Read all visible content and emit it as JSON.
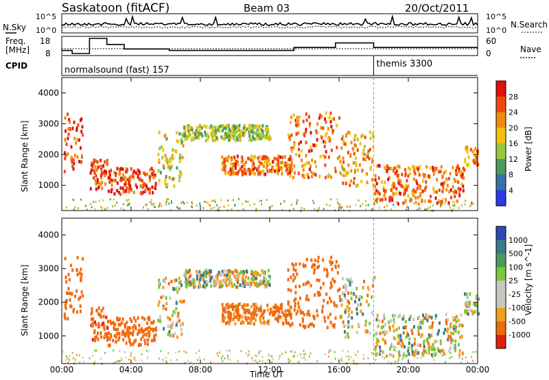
{
  "header": {
    "station": "Saskatoon (fitACF)",
    "beam": "Beam 03",
    "date": "20/Oct/2011"
  },
  "noise_panel": {
    "left_label": "N.Sky",
    "right_label": "N.Search",
    "left_ticks": [
      "10^5",
      "10^0"
    ],
    "right_ticks": [
      "10^5",
      "10^0"
    ]
  },
  "freq_panel": {
    "left_label_1": "Freq.",
    "left_label_2": "[MHz]",
    "right_label": "Nave",
    "left_ticks": [
      "18",
      "8"
    ],
    "right_ticks": [
      "60",
      "0"
    ]
  },
  "cpid": {
    "label": "CPID",
    "segments": [
      {
        "name": "normalsound (fast) 157",
        "start_hour": 0,
        "end_hour": 18
      },
      {
        "name": "themis 3300",
        "start_hour": 18,
        "end_hour": 24
      }
    ]
  },
  "power_panel": {
    "ylabel": "Slant Range [km]",
    "yticks": [
      "4000",
      "3000",
      "2000",
      "1000"
    ],
    "colorbar_label": "Power [dB]",
    "colorbar_ticks": [
      "28",
      "24",
      "20",
      "16",
      "12",
      "8",
      "4"
    ],
    "colors": [
      "#e01010",
      "#ee4a10",
      "#f08a10",
      "#f2c010",
      "#98c83a",
      "#4a9a5a",
      "#3a70a8",
      "#2a3ae8"
    ]
  },
  "velocity_panel": {
    "ylabel": "Slant Range [km]",
    "yticks": [
      "4000",
      "3000",
      "2000",
      "1000"
    ],
    "colorbar_label": "Velocity [m s^-1]",
    "colorbar_ticks": [
      "1000",
      "500",
      "100",
      "25",
      "-25",
      "-100",
      "-500",
      "-1000"
    ],
    "colors": [
      "#2a4ab0",
      "#3a7a8a",
      "#4a9a5a",
      "#7ac83a",
      "#c8c8c0",
      "#c8c8c0",
      "#f0a020",
      "#f06a10",
      "#e02010"
    ]
  },
  "xaxis": {
    "label": "Time UT",
    "ticks": [
      "00:00",
      "04:00",
      "08:00",
      "12:00",
      "16:00",
      "20:00",
      "00:00"
    ]
  },
  "chart_data": {
    "type": "heatmap",
    "title": "Saskatoon (fitACF)   Beam 03   20/Oct/2011",
    "xlabel": "Time UT",
    "ylabel": "Slant Range [km]",
    "xlim_hours": [
      0,
      24
    ],
    "ylim_km": [
      180,
      4500
    ],
    "frequency_steps_mhz": [
      {
        "start": 0.0,
        "end": 0.6,
        "f": 10
      },
      {
        "start": 0.6,
        "end": 1.6,
        "f": 8
      },
      {
        "start": 1.6,
        "end": 2.6,
        "f": 18
      },
      {
        "start": 2.6,
        "end": 3.6,
        "f": 14
      },
      {
        "start": 3.6,
        "end": 6.2,
        "f": 11
      },
      {
        "start": 6.2,
        "end": 13.4,
        "f": 10
      },
      {
        "start": 13.4,
        "end": 15.8,
        "f": 12
      },
      {
        "start": 15.8,
        "end": 18.0,
        "f": 15
      },
      {
        "start": 18.0,
        "end": 24.0,
        "f": 12
      }
    ],
    "scatter_regions": [
      {
        "t0": 0.1,
        "t1": 1.2,
        "r0": 1500,
        "r1": 3400,
        "power": 24,
        "velocity": -300
      },
      {
        "t0": 1.6,
        "t1": 2.6,
        "r0": 900,
        "r1": 1900,
        "power": 24,
        "velocity": -400
      },
      {
        "t0": 2.6,
        "t1": 5.4,
        "r0": 750,
        "r1": 1600,
        "power": 26,
        "velocity": -350
      },
      {
        "t0": 5.5,
        "t1": 7.0,
        "r0": 1000,
        "r1": 2800,
        "power": 14,
        "velocity": 0
      },
      {
        "t0": 7.0,
        "t1": 12.0,
        "r0": 2500,
        "r1": 3000,
        "power": 12,
        "velocity": 10
      },
      {
        "t0": 9.2,
        "t1": 13.2,
        "r0": 1400,
        "r1": 2000,
        "power": 22,
        "velocity": -200
      },
      {
        "t0": 13.0,
        "t1": 16.0,
        "r0": 1300,
        "r1": 3400,
        "power": 22,
        "velocity": -300
      },
      {
        "t0": 16.0,
        "t1": 18.0,
        "r0": 1000,
        "r1": 2800,
        "power": 18,
        "velocity": 0
      },
      {
        "t0": 18.0,
        "t1": 23.2,
        "r0": 450,
        "r1": 1700,
        "power": 22,
        "velocity": 0
      },
      {
        "t0": 23.2,
        "t1": 24.0,
        "r0": 1700,
        "r1": 2300,
        "power": 20,
        "velocity": 80
      }
    ]
  }
}
